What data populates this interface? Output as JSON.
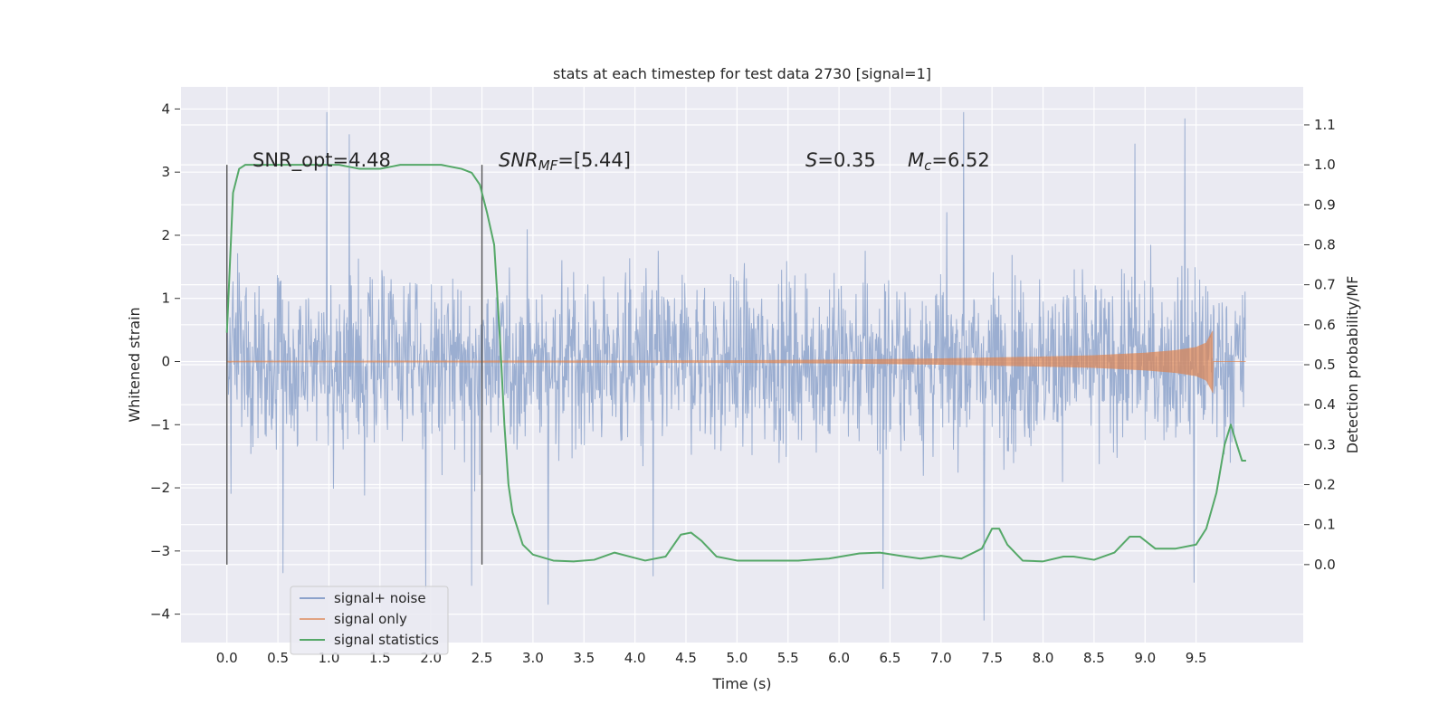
{
  "chart_data": {
    "type": "line",
    "title": "stats at each timestep for test data 2730 [signal=1]",
    "xlabel": "Time (s)",
    "ylabel_left": "Whitened strain",
    "ylabel_right": "Detection probability/MF",
    "xlim": [
      -0.45,
      10.55
    ],
    "ylim_left": [
      -4.45,
      4.35
    ],
    "ylim_right": [
      -0.195,
      1.195
    ],
    "x_ticks": [
      "0.0",
      "0.5",
      "1.0",
      "1.5",
      "2.0",
      "2.5",
      "3.0",
      "3.5",
      "4.0",
      "4.5",
      "5.0",
      "5.5",
      "6.0",
      "6.5",
      "7.0",
      "7.5",
      "8.0",
      "8.5",
      "9.0",
      "9.5"
    ],
    "y_ticks_left": [
      "−4",
      "−3",
      "−2",
      "−1",
      "0",
      "1",
      "2",
      "3",
      "4"
    ],
    "y_ticks_right": [
      "0.0",
      "0.1",
      "0.2",
      "0.3",
      "0.4",
      "0.5",
      "0.6",
      "0.7",
      "0.8",
      "0.9",
      "1.0",
      "1.1"
    ],
    "grid": true,
    "legend_position": "lower-left",
    "colors": {
      "background": "#eaeaf2",
      "grid": "#ffffff",
      "signal_noise": "#4c72b0",
      "signal_only": "#dd8452",
      "statistics": "#55a868",
      "vline": "#555555"
    },
    "annotations": {
      "snr_opt": "SNR_opt=4.48",
      "snr_mf_base": "SNR",
      "snr_mf_sub": "MF",
      "snr_mf_value": "=[5.44]",
      "s_sym": "S",
      "s_value": "=0.35",
      "mc_sym": "M",
      "mc_sub": "c",
      "mc_value": "=6.52"
    },
    "window_lines_x": [
      0.0,
      2.5
    ],
    "series": [
      {
        "name": "signal+ noise",
        "axis": "left",
        "x_range": [
          0.0,
          9.99
        ],
        "envelope": "dense whitened-noise trace, core roughly ±1.3, peaks between −4.1 and 4.0",
        "notable_peaks": [
          [
            0.98,
            3.95
          ],
          [
            7.22,
            3.95
          ],
          [
            9.39,
            3.85
          ],
          [
            1.2,
            3.6
          ],
          [
            8.9,
            3.45
          ],
          [
            7.42,
            -4.1
          ],
          [
            3.15,
            -3.85
          ],
          [
            6.43,
            -3.6
          ],
          [
            0.55,
            -3.35
          ],
          [
            2.4,
            -3.55
          ],
          [
            9.48,
            -3.5
          ],
          [
            4.18,
            -3.4
          ],
          [
            1.95,
            -3.6
          ]
        ]
      },
      {
        "name": "signal only",
        "axis": "left",
        "envelope_x": [
          0.0,
          3.0,
          5.0,
          6.0,
          7.0,
          8.0,
          8.5,
          9.0,
          9.3,
          9.5,
          9.6,
          9.65,
          9.665
        ],
        "envelope_amp": [
          0.01,
          0.015,
          0.02,
          0.03,
          0.05,
          0.08,
          0.1,
          0.14,
          0.18,
          0.23,
          0.3,
          0.45,
          0.5
        ]
      },
      {
        "name": "signal statistics",
        "axis": "right",
        "x": [
          0.0,
          0.06,
          0.12,
          0.18,
          0.3,
          0.5,
          0.7,
          0.9,
          1.1,
          1.3,
          1.5,
          1.7,
          1.9,
          2.1,
          2.3,
          2.4,
          2.48,
          2.55,
          2.62,
          2.68,
          2.72,
          2.76,
          2.8,
          2.9,
          3.0,
          3.2,
          3.4,
          3.6,
          3.8,
          3.95,
          4.1,
          4.3,
          4.45,
          4.55,
          4.65,
          4.8,
          5.0,
          5.3,
          5.6,
          5.9,
          6.2,
          6.4,
          6.6,
          6.8,
          7.0,
          7.2,
          7.4,
          7.5,
          7.57,
          7.65,
          7.8,
          8.0,
          8.2,
          8.3,
          8.5,
          8.7,
          8.85,
          8.95,
          9.1,
          9.3,
          9.5,
          9.6,
          9.7,
          9.78,
          9.84,
          9.9,
          9.95,
          9.99
        ],
        "y": [
          0.58,
          0.93,
          0.99,
          1.0,
          1.0,
          1.0,
          1.0,
          1.0,
          1.0,
          0.99,
          0.99,
          1.0,
          1.0,
          1.0,
          0.99,
          0.98,
          0.95,
          0.88,
          0.8,
          0.55,
          0.35,
          0.2,
          0.13,
          0.05,
          0.025,
          0.01,
          0.008,
          0.012,
          0.03,
          0.02,
          0.01,
          0.02,
          0.075,
          0.08,
          0.06,
          0.02,
          0.01,
          0.01,
          0.01,
          0.015,
          0.028,
          0.03,
          0.022,
          0.015,
          0.022,
          0.015,
          0.04,
          0.09,
          0.09,
          0.05,
          0.01,
          0.008,
          0.02,
          0.02,
          0.012,
          0.03,
          0.07,
          0.07,
          0.04,
          0.04,
          0.05,
          0.09,
          0.18,
          0.3,
          0.35,
          0.3,
          0.26,
          0.26
        ]
      }
    ]
  }
}
